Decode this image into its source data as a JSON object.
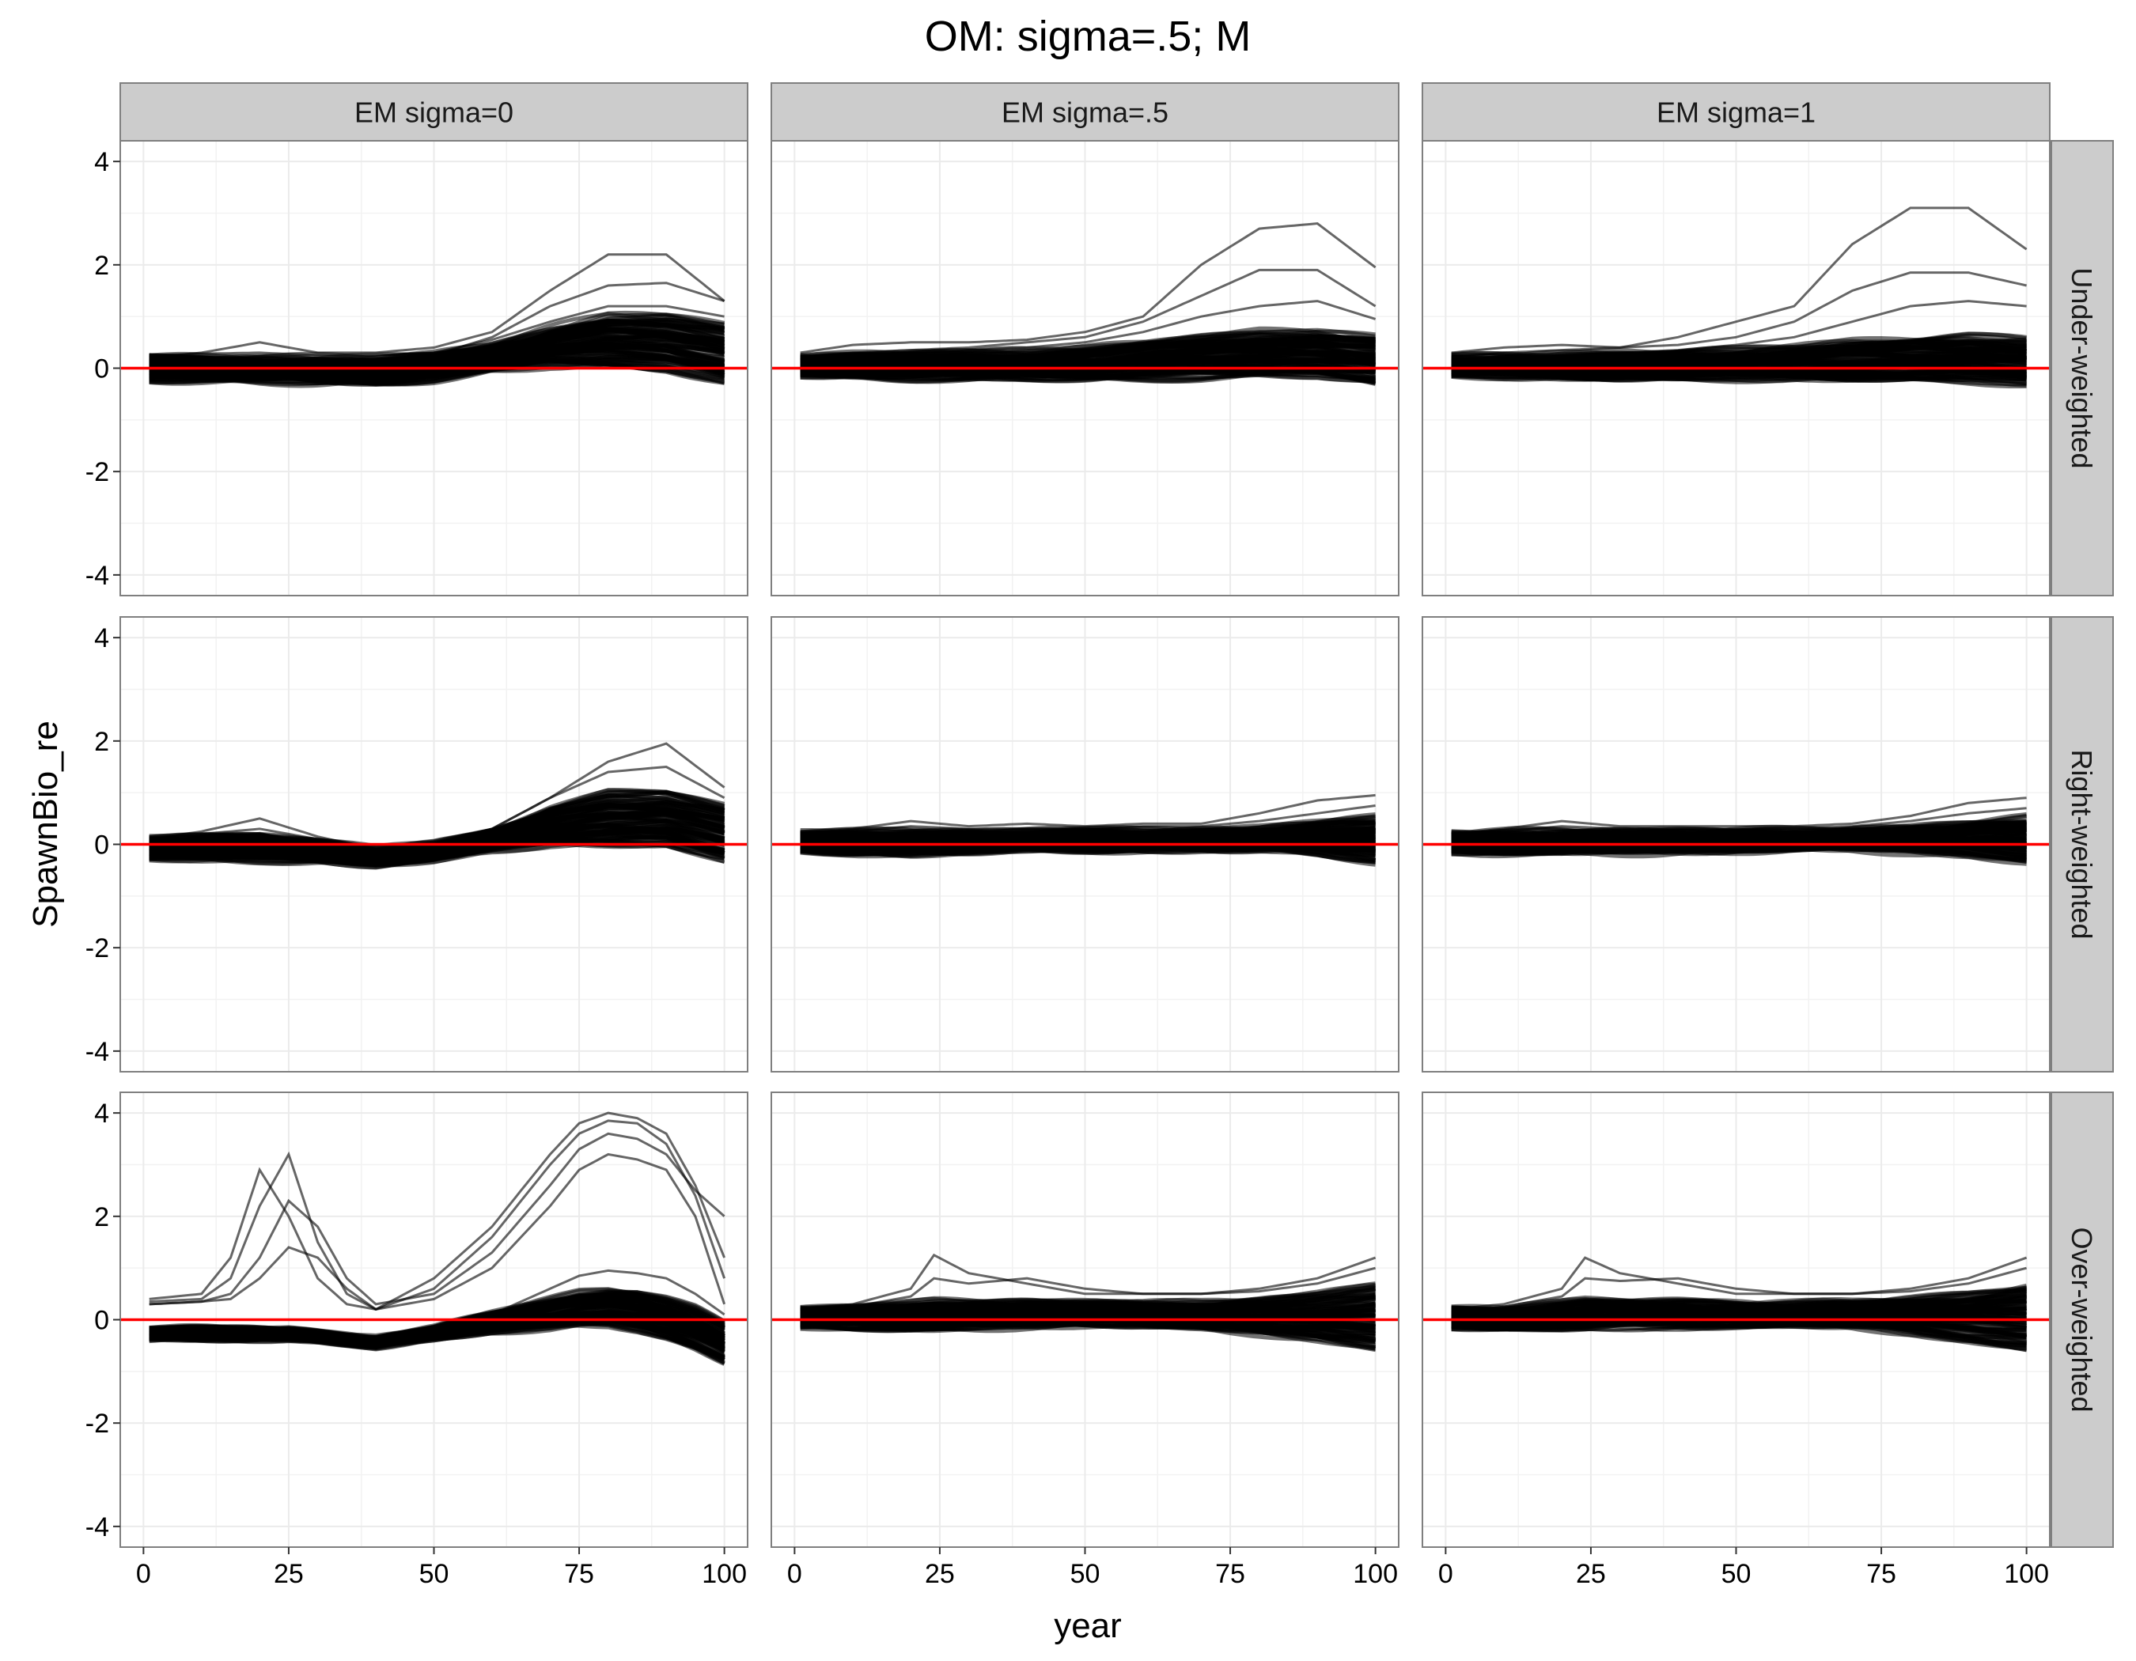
{
  "chart_data": {
    "type": "line",
    "title": "OM: sigma=.5; M",
    "xlabel": "year",
    "ylabel": "SpawnBio_re",
    "xlim": [
      -4,
      104
    ],
    "ylim": [
      -4.4,
      4.4
    ],
    "x_ticks": [
      0,
      25,
      50,
      75,
      100
    ],
    "y_ticks": [
      -4,
      -2,
      0,
      2,
      4
    ],
    "x_tick_labels": [
      "0",
      "25",
      "50",
      "75",
      "100"
    ],
    "y_tick_labels": [
      "-4",
      "-2",
      "0",
      "2",
      "4"
    ],
    "grid": true,
    "reference_line": {
      "y": 0,
      "color": "#ff0000"
    },
    "line_color": "#000000",
    "col_facets": [
      "EM sigma=0",
      "EM sigma=.5",
      "EM sigma=1"
    ],
    "row_facets": [
      "Under-weighted",
      "Right-weighted",
      "Over-weighted"
    ],
    "panels": [
      {
        "col": "EM sigma=0",
        "row": "Under-weighted",
        "x": [
          1,
          10,
          20,
          30,
          40,
          50,
          60,
          70,
          80,
          90,
          100
        ],
        "series": [
          {
            "values": [
              0.25,
              0.28,
              0.3,
              0.25,
              0.25,
              0.3,
              0.55,
              0.9,
              1.2,
              1.2,
              1.0
            ]
          },
          {
            "values": [
              0.2,
              0.3,
              0.5,
              0.3,
              0.3,
              0.4,
              0.7,
              1.5,
              2.2,
              2.2,
              1.3
            ]
          },
          {
            "values": [
              0.1,
              0.12,
              0.1,
              0.1,
              0.15,
              0.25,
              0.6,
              1.2,
              1.6,
              1.65,
              1.3
            ]
          },
          {
            "values": [
              -0.2,
              -0.25,
              -0.28,
              -0.3,
              -0.3,
              -0.2,
              -0.05,
              0.05,
              0.05,
              0.0,
              -0.3
            ]
          }
        ],
        "band_upper": [
          0.2,
          0.2,
          0.2,
          0.18,
          0.18,
          0.25,
          0.45,
          0.75,
          1.0,
          1.0,
          0.85
        ],
        "band_lower": [
          -0.2,
          -0.22,
          -0.25,
          -0.28,
          -0.28,
          -0.2,
          -0.05,
          0.05,
          0.05,
          0.0,
          -0.25
        ]
      },
      {
        "col": "EM sigma=.5",
        "row": "Under-weighted",
        "x": [
          1,
          10,
          20,
          30,
          40,
          50,
          60,
          70,
          80,
          90,
          100
        ],
        "series": [
          {
            "values": [
              0.3,
              0.45,
              0.5,
              0.5,
              0.55,
              0.7,
              1.0,
              2.0,
              2.7,
              2.8,
              1.95
            ]
          },
          {
            "values": [
              0.2,
              0.3,
              0.35,
              0.4,
              0.5,
              0.6,
              0.9,
              1.4,
              1.9,
              1.9,
              1.2
            ]
          },
          {
            "values": [
              0.2,
              0.25,
              0.3,
              0.35,
              0.4,
              0.5,
              0.7,
              1.0,
              1.2,
              1.3,
              0.95
            ]
          },
          {
            "values": [
              -0.15,
              -0.2,
              -0.22,
              -0.22,
              -0.25,
              -0.22,
              -0.2,
              -0.2,
              -0.15,
              -0.1,
              -0.3
            ]
          }
        ],
        "band_upper": [
          0.22,
          0.25,
          0.28,
          0.3,
          0.32,
          0.38,
          0.48,
          0.6,
          0.7,
          0.7,
          0.6
        ],
        "band_lower": [
          -0.12,
          -0.15,
          -0.18,
          -0.2,
          -0.2,
          -0.2,
          -0.18,
          -0.18,
          -0.15,
          -0.15,
          -0.28
        ]
      },
      {
        "col": "EM sigma=1",
        "row": "Under-weighted",
        "x": [
          1,
          10,
          20,
          30,
          40,
          50,
          60,
          70,
          80,
          90,
          100
        ],
        "series": [
          {
            "values": [
              0.3,
              0.4,
              0.45,
              0.4,
              0.6,
              0.9,
              1.2,
              2.4,
              3.1,
              3.1,
              2.3
            ]
          },
          {
            "values": [
              0.2,
              0.3,
              0.35,
              0.4,
              0.45,
              0.6,
              0.9,
              1.5,
              1.85,
              1.85,
              1.6
            ]
          },
          {
            "values": [
              0.15,
              0.2,
              0.25,
              0.3,
              0.35,
              0.45,
              0.6,
              0.9,
              1.2,
              1.3,
              1.2
            ]
          },
          {
            "values": [
              -0.15,
              -0.2,
              -0.2,
              -0.2,
              -0.22,
              -0.2,
              -0.2,
              -0.2,
              -0.2,
              -0.2,
              -0.3
            ]
          }
        ],
        "band_upper": [
          0.2,
          0.22,
          0.25,
          0.28,
          0.3,
          0.33,
          0.4,
          0.5,
          0.55,
          0.6,
          0.55
        ],
        "band_lower": [
          -0.12,
          -0.15,
          -0.18,
          -0.2,
          -0.2,
          -0.2,
          -0.2,
          -0.22,
          -0.22,
          -0.25,
          -0.3
        ]
      },
      {
        "col": "EM sigma=0",
        "row": "Right-weighted",
        "x": [
          1,
          10,
          20,
          30,
          40,
          50,
          60,
          70,
          80,
          90,
          100
        ],
        "series": [
          {
            "values": [
              0.1,
              0.25,
              0.5,
              0.15,
              -0.1,
              0.0,
              0.3,
              0.9,
              1.6,
              1.95,
              1.1
            ]
          },
          {
            "values": [
              0.1,
              0.2,
              0.3,
              0.1,
              -0.1,
              0.0,
              0.3,
              0.9,
              1.4,
              1.5,
              0.9
            ]
          },
          {
            "values": [
              -0.25,
              -0.3,
              -0.35,
              -0.35,
              -0.4,
              -0.3,
              -0.1,
              0.0,
              0.0,
              0.0,
              -0.35
            ]
          }
        ],
        "band_upper": [
          0.1,
          0.15,
          0.2,
          0.05,
          -0.1,
          0.0,
          0.25,
          0.7,
          1.0,
          1.0,
          0.75
        ],
        "band_lower": [
          -0.25,
          -0.28,
          -0.3,
          -0.32,
          -0.38,
          -0.28,
          -0.1,
          0.0,
          0.0,
          0.0,
          -0.3
        ]
      },
      {
        "col": "EM sigma=.5",
        "row": "Right-weighted",
        "x": [
          1,
          10,
          20,
          30,
          40,
          50,
          60,
          70,
          80,
          90,
          100
        ],
        "series": [
          {
            "values": [
              0.2,
              0.3,
              0.45,
              0.35,
              0.4,
              0.35,
              0.4,
              0.4,
              0.6,
              0.85,
              0.95
            ]
          },
          {
            "values": [
              0.15,
              0.25,
              0.35,
              0.3,
              0.3,
              0.3,
              0.35,
              0.35,
              0.45,
              0.6,
              0.75
            ]
          },
          {
            "values": [
              -0.15,
              -0.2,
              -0.2,
              -0.15,
              -0.15,
              -0.12,
              -0.1,
              -0.1,
              -0.1,
              -0.15,
              -0.35
            ]
          }
        ],
        "band_upper": [
          0.2,
          0.22,
          0.25,
          0.25,
          0.25,
          0.25,
          0.25,
          0.28,
          0.32,
          0.4,
          0.5
        ],
        "band_lower": [
          -0.12,
          -0.15,
          -0.18,
          -0.15,
          -0.12,
          -0.1,
          -0.1,
          -0.1,
          -0.12,
          -0.18,
          -0.32
        ]
      },
      {
        "col": "EM sigma=1",
        "row": "Right-weighted",
        "x": [
          1,
          10,
          20,
          30,
          40,
          50,
          60,
          70,
          80,
          90,
          100
        ],
        "series": [
          {
            "values": [
              0.2,
              0.3,
              0.45,
              0.35,
              0.35,
              0.35,
              0.35,
              0.4,
              0.55,
              0.8,
              0.9
            ]
          },
          {
            "values": [
              0.15,
              0.25,
              0.35,
              0.3,
              0.3,
              0.3,
              0.3,
              0.35,
              0.45,
              0.6,
              0.7
            ]
          },
          {
            "values": [
              -0.15,
              -0.2,
              -0.2,
              -0.15,
              -0.15,
              -0.12,
              -0.1,
              -0.1,
              -0.12,
              -0.18,
              -0.35
            ]
          }
        ],
        "band_upper": [
          0.2,
          0.22,
          0.25,
          0.25,
          0.25,
          0.25,
          0.25,
          0.28,
          0.32,
          0.4,
          0.5
        ],
        "band_lower": [
          -0.12,
          -0.15,
          -0.18,
          -0.15,
          -0.12,
          -0.1,
          -0.1,
          -0.1,
          -0.12,
          -0.18,
          -0.32
        ]
      },
      {
        "col": "EM sigma=0",
        "row": "Over-weighted",
        "x": [
          1,
          10,
          15,
          20,
          25,
          30,
          35,
          40,
          50,
          60,
          70,
          75,
          80,
          85,
          90,
          95,
          100
        ],
        "series": [
          {
            "values": [
              0.4,
              0.5,
              1.2,
              2.9,
              2.0,
              0.8,
              0.3,
              0.2,
              0.8,
              1.8,
              3.2,
              3.8,
              4.0,
              3.9,
              3.6,
              2.6,
              1.2
            ]
          },
          {
            "values": [
              0.35,
              0.4,
              0.8,
              2.2,
              3.2,
              1.5,
              0.5,
              0.2,
              0.6,
              1.6,
              3.0,
              3.6,
              3.85,
              3.8,
              3.4,
              2.4,
              0.8
            ]
          },
          {
            "values": [
              0.3,
              0.35,
              0.5,
              1.2,
              2.3,
              1.8,
              0.8,
              0.3,
              0.5,
              1.3,
              2.6,
              3.3,
              3.6,
              3.5,
              3.2,
              2.5,
              2.0
            ]
          },
          {
            "values": [
              0.3,
              0.35,
              0.4,
              0.8,
              1.4,
              1.2,
              0.6,
              0.2,
              0.4,
              1.0,
              2.2,
              2.9,
              3.2,
              3.1,
              2.9,
              2.0,
              0.3
            ]
          },
          {
            "values": [
              -0.3,
              -0.3,
              -0.3,
              -0.3,
              -0.3,
              -0.35,
              -0.4,
              -0.45,
              -0.3,
              0.1,
              0.6,
              0.85,
              0.95,
              0.9,
              0.8,
              0.5,
              0.1
            ]
          },
          {
            "values": [
              -0.35,
              -0.35,
              -0.35,
              -0.35,
              -0.35,
              -0.4,
              -0.45,
              -0.5,
              -0.35,
              -0.2,
              -0.15,
              -0.1,
              -0.1,
              -0.2,
              -0.35,
              -0.55,
              -0.85
            ]
          }
        ],
        "band_upper": [
          -0.2,
          -0.2,
          -0.2,
          -0.2,
          -0.2,
          -0.25,
          -0.3,
          -0.35,
          -0.2,
          0.1,
          0.4,
          0.55,
          0.6,
          0.55,
          0.4,
          0.2,
          -0.1
        ],
        "band_lower": [
          -0.35,
          -0.35,
          -0.35,
          -0.35,
          -0.35,
          -0.4,
          -0.45,
          -0.5,
          -0.35,
          -0.2,
          -0.15,
          -0.1,
          -0.1,
          -0.2,
          -0.35,
          -0.55,
          -0.8
        ]
      },
      {
        "col": "EM sigma=.5",
        "row": "Over-weighted",
        "x": [
          1,
          10,
          20,
          24,
          30,
          40,
          50,
          60,
          70,
          80,
          90,
          100
        ],
        "series": [
          {
            "values": [
              0.2,
              0.3,
              0.6,
              1.25,
              0.9,
              0.7,
              0.5,
              0.5,
              0.5,
              0.6,
              0.8,
              1.2
            ]
          },
          {
            "values": [
              0.15,
              0.25,
              0.45,
              0.8,
              0.7,
              0.8,
              0.6,
              0.5,
              0.5,
              0.55,
              0.7,
              1.0
            ]
          },
          {
            "values": [
              -0.15,
              -0.2,
              -0.2,
              -0.2,
              -0.2,
              -0.15,
              -0.1,
              -0.1,
              -0.15,
              -0.25,
              -0.4,
              -0.6
            ]
          }
        ],
        "band_upper": [
          0.2,
          0.22,
          0.3,
          0.35,
          0.35,
          0.35,
          0.32,
          0.3,
          0.32,
          0.4,
          0.5,
          0.65
        ],
        "band_lower": [
          -0.12,
          -0.15,
          -0.18,
          -0.18,
          -0.15,
          -0.12,
          -0.1,
          -0.1,
          -0.15,
          -0.25,
          -0.38,
          -0.55
        ]
      },
      {
        "col": "EM sigma=1",
        "row": "Over-weighted",
        "x": [
          1,
          10,
          20,
          24,
          30,
          40,
          50,
          60,
          70,
          80,
          90,
          100
        ],
        "series": [
          {
            "values": [
              0.2,
              0.3,
              0.6,
              1.2,
              0.9,
              0.7,
              0.5,
              0.5,
              0.5,
              0.6,
              0.8,
              1.2
            ]
          },
          {
            "values": [
              0.15,
              0.25,
              0.45,
              0.8,
              0.75,
              0.8,
              0.6,
              0.5,
              0.5,
              0.55,
              0.7,
              1.0
            ]
          },
          {
            "values": [
              -0.15,
              -0.2,
              -0.2,
              -0.2,
              -0.2,
              -0.15,
              -0.1,
              -0.1,
              -0.15,
              -0.25,
              -0.4,
              -0.6
            ]
          }
        ],
        "band_upper": [
          0.2,
          0.22,
          0.3,
          0.35,
          0.35,
          0.35,
          0.32,
          0.3,
          0.32,
          0.4,
          0.5,
          0.65
        ],
        "band_lower": [
          -0.12,
          -0.15,
          -0.18,
          -0.18,
          -0.15,
          -0.12,
          -0.1,
          -0.1,
          -0.15,
          -0.25,
          -0.38,
          -0.55
        ]
      }
    ]
  }
}
